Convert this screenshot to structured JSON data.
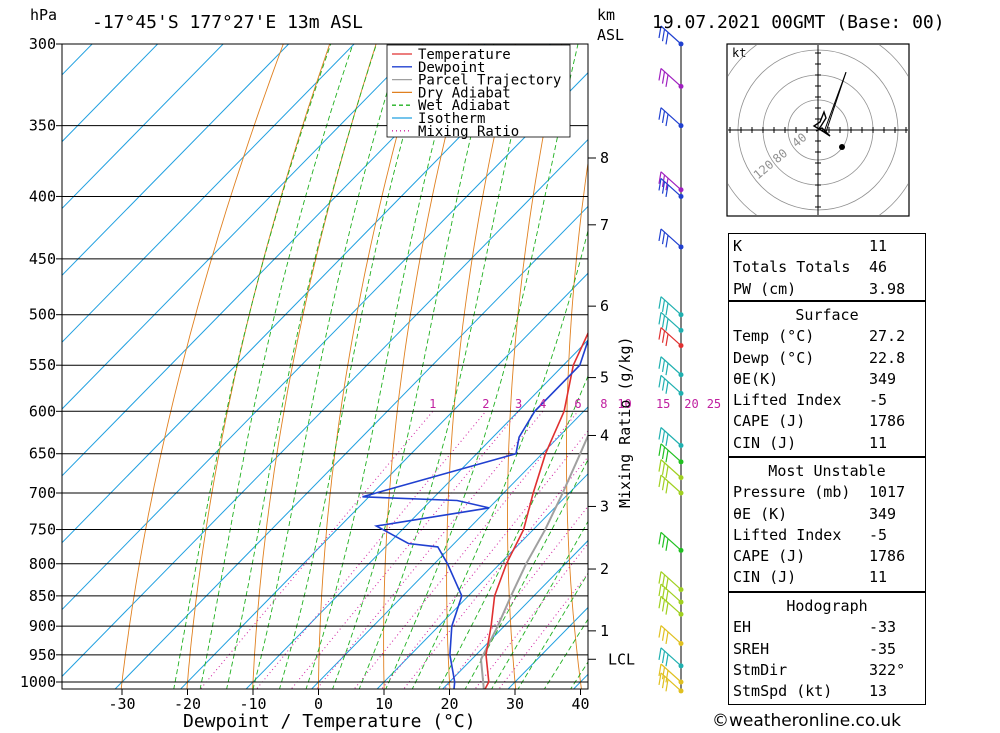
{
  "header": {
    "hpa": "hPa",
    "location": "-17°45'S 177°27'E 13m ASL",
    "km": "km",
    "asl": "ASL",
    "datetime": "19.07.2021 00GMT (Base: 00)"
  },
  "legend": [
    {
      "label": "Temperature",
      "color": "#e03030",
      "dash": ""
    },
    {
      "label": "Dewpoint",
      "color": "#2040d0",
      "dash": ""
    },
    {
      "label": "Parcel Trajectory",
      "color": "#a0a0a0",
      "dash": ""
    },
    {
      "label": "Dry Adiabat",
      "color": "#e08020",
      "dash": ""
    },
    {
      "label": "Wet Adiabat",
      "color": "#20b020",
      "dash": "4,3"
    },
    {
      "label": "Isotherm",
      "color": "#20a0e0",
      "dash": ""
    },
    {
      "label": "Mixing Ratio",
      "color": "#d020a0",
      "dash": "1,3"
    }
  ],
  "chart_data": {
    "type": "line",
    "title": "-17°45'S 177°27'E 13m ASL",
    "xlabel": "Dewpoint / Temperature (°C)",
    "ylabel": "hPa",
    "xlim": [
      -40,
      40
    ],
    "ylim": [
      1000,
      300
    ],
    "x_ticks": [
      "-30",
      "-20",
      "-10",
      "0",
      "10",
      "20",
      "30",
      "40"
    ],
    "pressure_ticks": [
      "300",
      "350",
      "400",
      "450",
      "500",
      "550",
      "600",
      "650",
      "700",
      "750",
      "800",
      "850",
      "900",
      "950",
      "1000"
    ],
    "km_ticks": [
      {
        "label": "8",
        "p": 372
      },
      {
        "label": "7",
        "p": 422
      },
      {
        "label": "6",
        "p": 492
      },
      {
        "label": "5",
        "p": 563
      },
      {
        "label": "4",
        "p": 628
      },
      {
        "label": "3",
        "p": 718
      },
      {
        "label": "2",
        "p": 808
      },
      {
        "label": "1",
        "p": 908
      },
      {
        "label": "LCL",
        "p": 958
      }
    ],
    "mixing_ratio_axis_label": "Mixing Ratio (g/kg)",
    "mixing_ratio_labels": [
      "1",
      "2",
      "3",
      "4",
      "6",
      "8",
      "10",
      "15",
      "20",
      "25"
    ],
    "mixing_ratio_values": [
      1,
      2,
      3,
      4,
      6,
      8,
      10,
      15,
      20,
      25
    ],
    "series": [
      {
        "name": "Temperature",
        "color": "#e03030",
        "points": [
          [
            1017,
            26.6
          ],
          [
            1000,
            26.0
          ],
          [
            950,
            21.5
          ],
          [
            900,
            18.0
          ],
          [
            850,
            14.0
          ],
          [
            800,
            11.0
          ],
          [
            750,
            8.5
          ],
          [
            700,
            4.5
          ],
          [
            650,
            0.5
          ],
          [
            600,
            -3.0
          ],
          [
            550,
            -8.5
          ],
          [
            500,
            -12.5
          ],
          [
            450,
            -18.0
          ],
          [
            400,
            -24.0
          ],
          [
            380,
            -27.5
          ],
          [
            350,
            -32.0
          ],
          [
            300,
            -41.0
          ]
        ]
      },
      {
        "name": "Dewpoint",
        "color": "#2040d0",
        "points": [
          [
            1017,
            22.0
          ],
          [
            1000,
            20.8
          ],
          [
            950,
            16.0
          ],
          [
            900,
            12.0
          ],
          [
            850,
            9.0
          ],
          [
            800,
            2.0
          ],
          [
            775,
            -2.0
          ],
          [
            770,
            -7.0
          ],
          [
            745,
            -14.5
          ],
          [
            720,
            0.0
          ],
          [
            710,
            -6.0
          ],
          [
            705,
            -21.0
          ],
          [
            650,
            -4.0
          ],
          [
            630,
            -6.0
          ],
          [
            600,
            -7.5
          ],
          [
            550,
            -7.5
          ],
          [
            500,
            -12.5
          ],
          [
            400,
            -24.0
          ],
          [
            380,
            -27.5
          ],
          [
            370,
            -32.0
          ],
          [
            350,
            -33.5
          ],
          [
            300,
            -43.0
          ]
        ]
      },
      {
        "name": "Parcel Trajectory",
        "color": "#a0a0a0",
        "points": [
          [
            1017,
            26.6
          ],
          [
            958,
            21.4
          ],
          [
            900,
            19.0
          ],
          [
            850,
            16.5
          ],
          [
            800,
            14.0
          ],
          [
            750,
            11.8
          ],
          [
            700,
            9.0
          ],
          [
            650,
            5.8
          ],
          [
            600,
            2.3
          ],
          [
            550,
            -1.5
          ],
          [
            500,
            -6.0
          ],
          [
            450,
            -11.0
          ],
          [
            400,
            -17.5
          ],
          [
            350,
            -25.0
          ]
        ]
      }
    ],
    "wind_barbs": [
      {
        "p": 300,
        "color": "#2040d0"
      },
      {
        "p": 325,
        "color": "#a020c0"
      },
      {
        "p": 350,
        "color": "#2040d0"
      },
      {
        "p": 395,
        "color": "#a020c0"
      },
      {
        "p": 400,
        "color": "#2040d0"
      },
      {
        "p": 440,
        "color": "#2040d0"
      },
      {
        "p": 500,
        "color": "#20b0b0"
      },
      {
        "p": 515,
        "color": "#20b0b0"
      },
      {
        "p": 530,
        "color": "#e03030"
      },
      {
        "p": 560,
        "color": "#20b0b0"
      },
      {
        "p": 580,
        "color": "#20b0b0"
      },
      {
        "p": 640,
        "color": "#20b0b0"
      },
      {
        "p": 660,
        "color": "#20c020"
      },
      {
        "p": 680,
        "color": "#a0d020"
      },
      {
        "p": 700,
        "color": "#a0d020"
      },
      {
        "p": 780,
        "color": "#20c020"
      },
      {
        "p": 840,
        "color": "#a0d020"
      },
      {
        "p": 860,
        "color": "#a0d020"
      },
      {
        "p": 880,
        "color": "#a0d020"
      },
      {
        "p": 930,
        "color": "#e0c020"
      },
      {
        "p": 970,
        "color": "#20b0b0"
      },
      {
        "p": 1000,
        "color": "#e0c020"
      },
      {
        "p": 1017,
        "color": "#e0c020"
      }
    ],
    "hodograph": {
      "unit": "kt",
      "ring_labels": [
        "40",
        "80",
        "120"
      ],
      "trace": [
        [
          0,
          0
        ],
        [
          3,
          4
        ],
        [
          8,
          12
        ],
        [
          6,
          18
        ],
        [
          2,
          8
        ],
        [
          -4,
          4
        ],
        [
          6,
          -2
        ],
        [
          12,
          -6
        ],
        [
          4,
          2
        ],
        [
          -2,
          -1
        ]
      ],
      "arrow": [
        [
          3,
          0
        ],
        [
          14,
          26
        ]
      ]
    }
  },
  "indices": {
    "k_label": "K",
    "k": "11",
    "tt_label": "Totals Totals",
    "tt": "46",
    "pw_label": "PW (cm)",
    "pw": "3.98"
  },
  "surface": {
    "title": "Surface",
    "temp_label": "Temp (°C)",
    "temp": "27.2",
    "dewp_label": "Dewp (°C)",
    "dewp": "22.8",
    "theta_label": "θE(K)",
    "theta": "349",
    "li_label": "Lifted Index",
    "li": "-5",
    "cape_label": "CAPE (J)",
    "cape": "1786",
    "cin_label": "CIN (J)",
    "cin": "11"
  },
  "most_unstable": {
    "title": "Most Unstable",
    "pressure_label": "Pressure (mb)",
    "pressure": "1017",
    "theta_label": "θE (K)",
    "theta": "349",
    "li_label": "Lifted Index",
    "li": "-5",
    "cape_label": "CAPE (J)",
    "cape": "1786",
    "cin_label": "CIN (J)",
    "cin": "11"
  },
  "hodograph_panel": {
    "title": "Hodograph",
    "eh_label": "EH",
    "eh": "-33",
    "sreh_label": "SREH",
    "sreh": "-35",
    "stmdir_label": "StmDir",
    "stmdir": "322°",
    "stmspd_label": "StmSpd (kt)",
    "stmspd": "13"
  },
  "credit": "©weatheronline.co.uk"
}
